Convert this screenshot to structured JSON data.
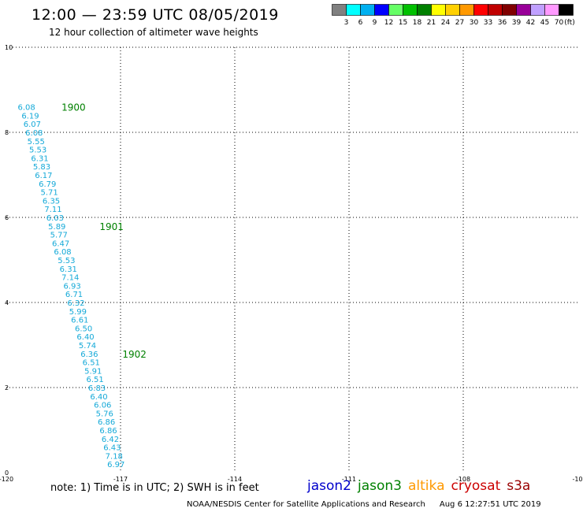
{
  "header": {
    "title": "12:00 — 23:59 UTC 08/05/2019",
    "subtitle": "12 hour collection of altimeter wave heights"
  },
  "legend": {
    "colors": [
      "#808080",
      "#00ffff",
      "#00b0f0",
      "#0000ff",
      "#66ff66",
      "#00c000",
      "#008000",
      "#ffff00",
      "#ffd000",
      "#ff9900",
      "#ff0000",
      "#c00000",
      "#800000",
      "#990099",
      "#c0a0ff",
      "#ff99ff",
      "#000000"
    ],
    "labels": [
      "3",
      "6",
      "9",
      "12",
      "15",
      "18",
      "21",
      "24",
      "27",
      "30",
      "33",
      "36",
      "39",
      "42",
      "45",
      "70"
    ],
    "unit": "(ft)"
  },
  "chart_data": {
    "type": "scatter",
    "x_ticks": [
      "-120",
      "-117",
      "-114",
      "-111",
      "-108",
      "-10"
    ],
    "y_ticks": [
      "0",
      "2",
      "4",
      "6",
      "8",
      "10"
    ],
    "xlim": [
      -120,
      -105
    ],
    "ylim": [
      0,
      10
    ],
    "grid": true,
    "points": [
      {
        "x": -119.7,
        "y": 8.6,
        "label": "6.08"
      },
      {
        "x": -119.6,
        "y": 8.4,
        "label": "6.19"
      },
      {
        "x": -119.55,
        "y": 8.2,
        "label": "6.07"
      },
      {
        "x": -119.5,
        "y": 8.0,
        "label": "6.08"
      },
      {
        "x": -119.45,
        "y": 7.8,
        "label": "5.55"
      },
      {
        "x": -119.4,
        "y": 7.6,
        "label": "5.53"
      },
      {
        "x": -119.35,
        "y": 7.4,
        "label": "6.31"
      },
      {
        "x": -119.3,
        "y": 7.2,
        "label": "5.83"
      },
      {
        "x": -119.25,
        "y": 7.0,
        "label": "6.17"
      },
      {
        "x": -119.15,
        "y": 6.8,
        "label": "6.79"
      },
      {
        "x": -119.1,
        "y": 6.6,
        "label": "5.71"
      },
      {
        "x": -119.05,
        "y": 6.4,
        "label": "6.35"
      },
      {
        "x": -119.0,
        "y": 6.2,
        "label": "7.11"
      },
      {
        "x": -118.95,
        "y": 6.0,
        "label": "6.03"
      },
      {
        "x": -118.9,
        "y": 5.8,
        "label": "5.89"
      },
      {
        "x": -118.85,
        "y": 5.6,
        "label": "5.77"
      },
      {
        "x": -118.8,
        "y": 5.4,
        "label": "6.47"
      },
      {
        "x": -118.75,
        "y": 5.2,
        "label": "6.08"
      },
      {
        "x": -118.65,
        "y": 5.0,
        "label": "5.53"
      },
      {
        "x": -118.6,
        "y": 4.8,
        "label": "6.31"
      },
      {
        "x": -118.55,
        "y": 4.6,
        "label": "7.14"
      },
      {
        "x": -118.5,
        "y": 4.4,
        "label": "6.93"
      },
      {
        "x": -118.45,
        "y": 4.2,
        "label": "6.71"
      },
      {
        "x": -118.4,
        "y": 4.0,
        "label": "6.32"
      },
      {
        "x": -118.35,
        "y": 3.8,
        "label": "5.99"
      },
      {
        "x": -118.3,
        "y": 3.6,
        "label": "6.61"
      },
      {
        "x": -118.2,
        "y": 3.4,
        "label": "6.50"
      },
      {
        "x": -118.15,
        "y": 3.2,
        "label": "6.40"
      },
      {
        "x": -118.1,
        "y": 3.0,
        "label": "5.74"
      },
      {
        "x": -118.05,
        "y": 2.8,
        "label": "6.36"
      },
      {
        "x": -118.0,
        "y": 2.6,
        "label": "6.51"
      },
      {
        "x": -117.95,
        "y": 2.4,
        "label": "5.91"
      },
      {
        "x": -117.9,
        "y": 2.2,
        "label": "6.51"
      },
      {
        "x": -117.85,
        "y": 2.0,
        "label": "6.83"
      },
      {
        "x": -117.8,
        "y": 1.8,
        "label": "6.40"
      },
      {
        "x": -117.7,
        "y": 1.6,
        "label": "6.06"
      },
      {
        "x": -117.65,
        "y": 1.4,
        "label": "5.76"
      },
      {
        "x": -117.6,
        "y": 1.2,
        "label": "6.86"
      },
      {
        "x": -117.55,
        "y": 1.0,
        "label": "6.86"
      },
      {
        "x": -117.5,
        "y": 0.8,
        "label": "6.42"
      },
      {
        "x": -117.45,
        "y": 0.6,
        "label": "6.43"
      },
      {
        "x": -117.4,
        "y": 0.4,
        "label": "7.18"
      },
      {
        "x": -117.35,
        "y": 0.2,
        "label": "6.97"
      }
    ],
    "time_marks": [
      {
        "x": -118.55,
        "y": 8.6,
        "label": "1900"
      },
      {
        "x": -117.55,
        "y": 5.8,
        "label": "1901"
      },
      {
        "x": -116.95,
        "y": 2.8,
        "label": "1902"
      }
    ]
  },
  "footer": {
    "note": "note:  1) Time is in UTC;  2) SWH is in feet",
    "satellites": [
      {
        "name": "jason2",
        "color": "#0000cc"
      },
      {
        "name": "jason3",
        "color": "#008000"
      },
      {
        "name": "altika",
        "color": "#ff9900"
      },
      {
        "name": "cryosat",
        "color": "#cc0000"
      },
      {
        "name": "s3a",
        "color": "#990000"
      }
    ],
    "credit": "NOAA/NESDIS Center for Satellite Applications and Research",
    "timestamp": "Aug  6 12:27:51 UTC 2019"
  }
}
